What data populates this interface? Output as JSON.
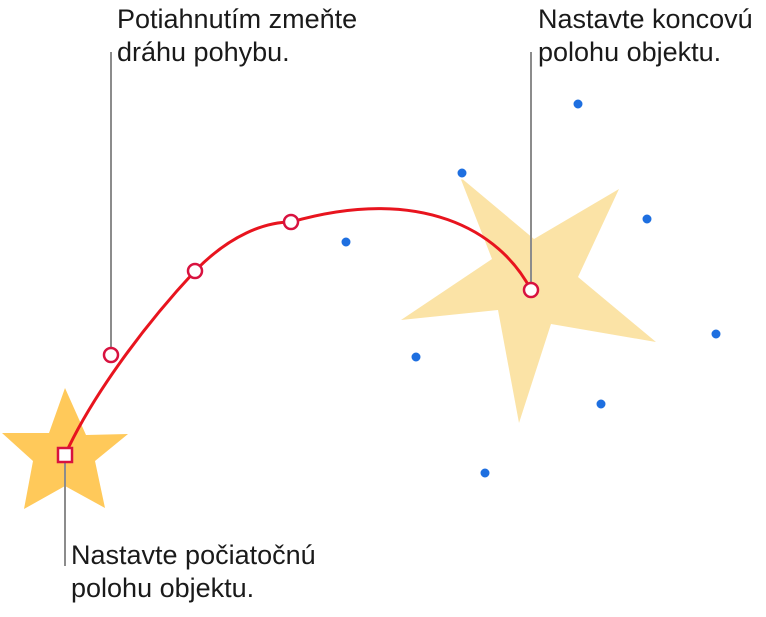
{
  "callouts": {
    "path": {
      "lines": [
        "Potiahnutím zmeňte",
        "dráhu pohybu."
      ]
    },
    "end": {
      "lines": [
        "Nastavte koncovú",
        "polohu objektu."
      ]
    },
    "start": {
      "lines": [
        "Nastavte počiatočnú",
        "polohu objektu."
      ]
    }
  },
  "colors": {
    "start_star": "#FFC95A",
    "end_star": "#FBE3A6",
    "motion_path": "#E8141E",
    "path_point_fill": "#FFFFFF",
    "path_point_stroke": "#D8123F",
    "selection_handle": "#1E6FE0",
    "leader_line": "#8C8C8C",
    "text": "#1A1A1A"
  }
}
